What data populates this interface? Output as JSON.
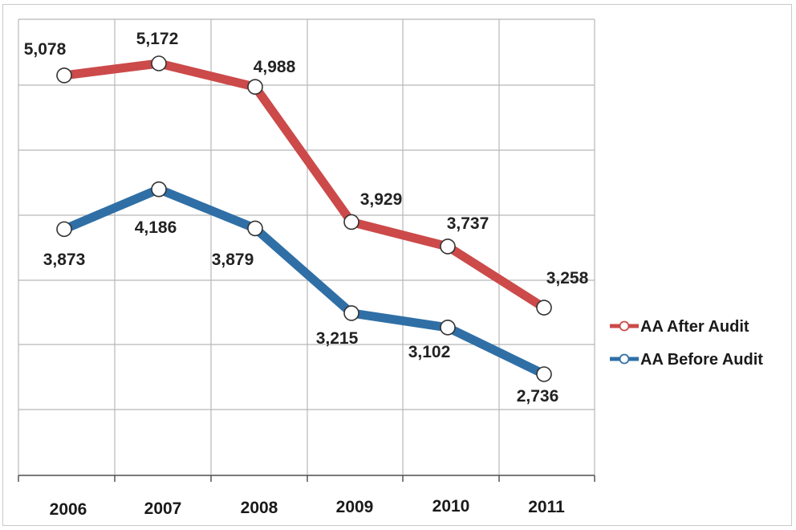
{
  "chart_data": {
    "type": "line",
    "categories": [
      "2006",
      "2007",
      "2008",
      "2009",
      "2010",
      "2011"
    ],
    "series": [
      {
        "name": "AA After Audit",
        "values": [
          5078,
          5172,
          4988,
          3929,
          3737,
          3258
        ],
        "labels": [
          "5,078",
          "5,172",
          "4,988",
          "3,929",
          "3,737",
          "3,258"
        ],
        "color": "#cc4a4a"
      },
      {
        "name": "AA Before Audit",
        "values": [
          3873,
          4186,
          3879,
          3215,
          3102,
          2736
        ],
        "labels": [
          "3,873",
          "4,186",
          "3,879",
          "3,215",
          "3,102",
          "2,736"
        ],
        "color": "#2f6fa6"
      }
    ],
    "title": "",
    "xlabel": "",
    "ylabel": "",
    "ylim": [
      2000,
      5500
    ],
    "grid": true,
    "legend_position": "right",
    "marker": "open-circle"
  }
}
